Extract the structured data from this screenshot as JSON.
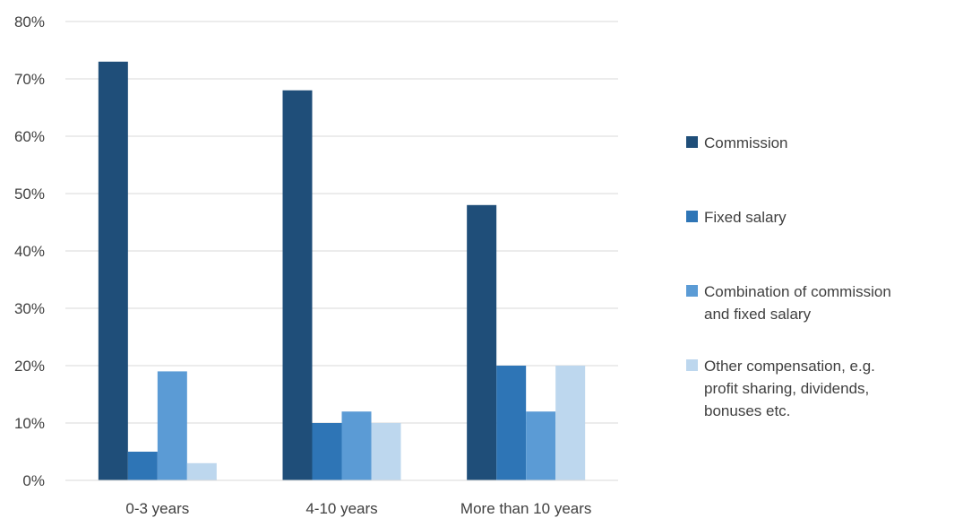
{
  "chart_data": {
    "type": "bar",
    "title": "",
    "xlabel": "",
    "ylabel": "",
    "categories": [
      "0-3 years",
      "4-10 years",
      "More than 10 years"
    ],
    "series": [
      {
        "name": "Commission",
        "values": [
          0.73,
          0.68,
          0.48
        ],
        "color": "#1f4e79"
      },
      {
        "name": "Fixed salary",
        "values": [
          0.05,
          0.1,
          0.2
        ],
        "color": "#2e75b6"
      },
      {
        "name": "Combination of commission and fixed salary",
        "legend_lines": [
          "Combination of commission",
          "and fixed salary"
        ],
        "values": [
          0.19,
          0.12,
          0.12
        ],
        "color": "#5b9bd5"
      },
      {
        "name": "Other compensation, e.g. profit sharing, dividends, bonuses etc.",
        "legend_lines": [
          "Other compensation, e.g.",
          "profit sharing, dividends,",
          "bonuses etc."
        ],
        "values": [
          0.03,
          0.1,
          0.2
        ],
        "color": "#bdd7ee"
      }
    ],
    "ylim": [
      0,
      0.8
    ],
    "yticks": [
      {
        "value": 0,
        "label": "0%"
      },
      {
        "value": 0.1,
        "label": "10%"
      },
      {
        "value": 0.2,
        "label": "20%"
      },
      {
        "value": 0.3,
        "label": "30%"
      },
      {
        "value": 0.4,
        "label": "40%"
      },
      {
        "value": 0.5,
        "label": "50%"
      },
      {
        "value": 0.6,
        "label": "60%"
      },
      {
        "value": 0.7,
        "label": "70%"
      },
      {
        "value": 0.8,
        "label": "80%"
      }
    ],
    "grid": true,
    "legend": "right"
  }
}
